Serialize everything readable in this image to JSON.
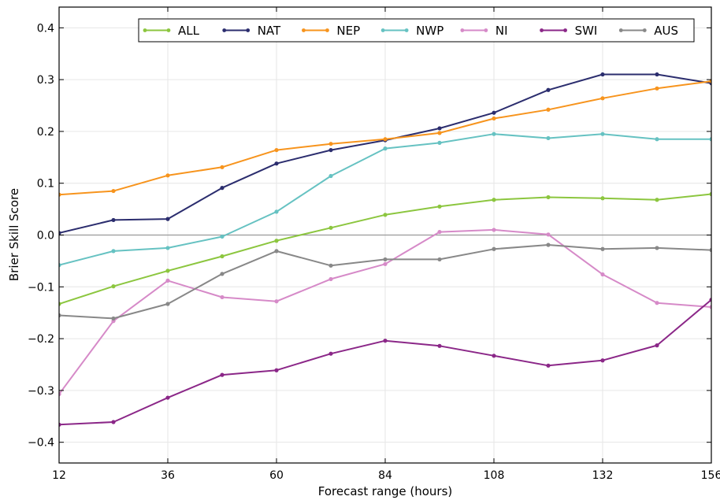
{
  "chart_data": {
    "type": "line",
    "xlabel": "Forecast range (hours)",
    "ylabel": "Brier Skill Score",
    "xlim": [
      12,
      156
    ],
    "ylim": [
      -0.44,
      0.44
    ],
    "xticks": [
      12,
      36,
      60,
      84,
      108,
      132,
      156
    ],
    "xtick_labels": [
      "12",
      "36",
      "60",
      "84",
      "108",
      "132",
      "156"
    ],
    "yticks": [
      -0.4,
      -0.3,
      -0.2,
      -0.1,
      0.0,
      0.1,
      0.2,
      0.3,
      0.4
    ],
    "ytick_labels": [
      "−0.4",
      "−0.3",
      "−0.2",
      "−0.1",
      "0.0",
      "0.1",
      "0.2",
      "0.3",
      "0.4"
    ],
    "grid": true,
    "zero_line": true,
    "legend_position": "top-right",
    "x": [
      12,
      24,
      36,
      48,
      60,
      72,
      84,
      96,
      108,
      120,
      132,
      144,
      156
    ],
    "series": [
      {
        "name": "ALL",
        "color": "#8cc63f",
        "values": [
          -0.133,
          -0.099,
          -0.069,
          -0.041,
          -0.011,
          0.014,
          0.039,
          0.055,
          0.068,
          0.073,
          0.071,
          0.068,
          0.079
        ]
      },
      {
        "name": "NAT",
        "color": "#2b2d6e",
        "values": [
          0.004,
          0.029,
          0.031,
          0.091,
          0.138,
          0.164,
          0.183,
          0.206,
          0.236,
          0.28,
          0.31,
          0.31,
          0.293
        ]
      },
      {
        "name": "NEP",
        "color": "#f7941d",
        "values": [
          0.078,
          0.085,
          0.115,
          0.131,
          0.164,
          0.176,
          0.185,
          0.197,
          0.225,
          0.242,
          0.264,
          0.283,
          0.297
        ]
      },
      {
        "name": "NWP",
        "color": "#66c2c2",
        "values": [
          -0.058,
          -0.031,
          -0.025,
          -0.003,
          0.045,
          0.114,
          0.167,
          0.178,
          0.195,
          0.187,
          0.195,
          0.185,
          0.185
        ]
      },
      {
        "name": "NI",
        "color": "#d68ac8",
        "values": [
          -0.307,
          -0.166,
          -0.088,
          -0.12,
          -0.128,
          -0.085,
          -0.056,
          0.006,
          0.01,
          0.001,
          -0.076,
          -0.131,
          -0.139
        ]
      },
      {
        "name": "SWI",
        "color": "#8b2788",
        "values": [
          -0.366,
          -0.361,
          -0.314,
          -0.27,
          -0.261,
          -0.229,
          -0.204,
          -0.214,
          -0.233,
          -0.252,
          -0.242,
          -0.213,
          -0.125
        ]
      },
      {
        "name": "AUS",
        "color": "#888888",
        "values": [
          -0.155,
          -0.161,
          -0.133,
          -0.075,
          -0.031,
          -0.059,
          -0.047,
          -0.047,
          -0.027,
          -0.019,
          -0.027,
          -0.025,
          -0.029
        ]
      }
    ]
  }
}
